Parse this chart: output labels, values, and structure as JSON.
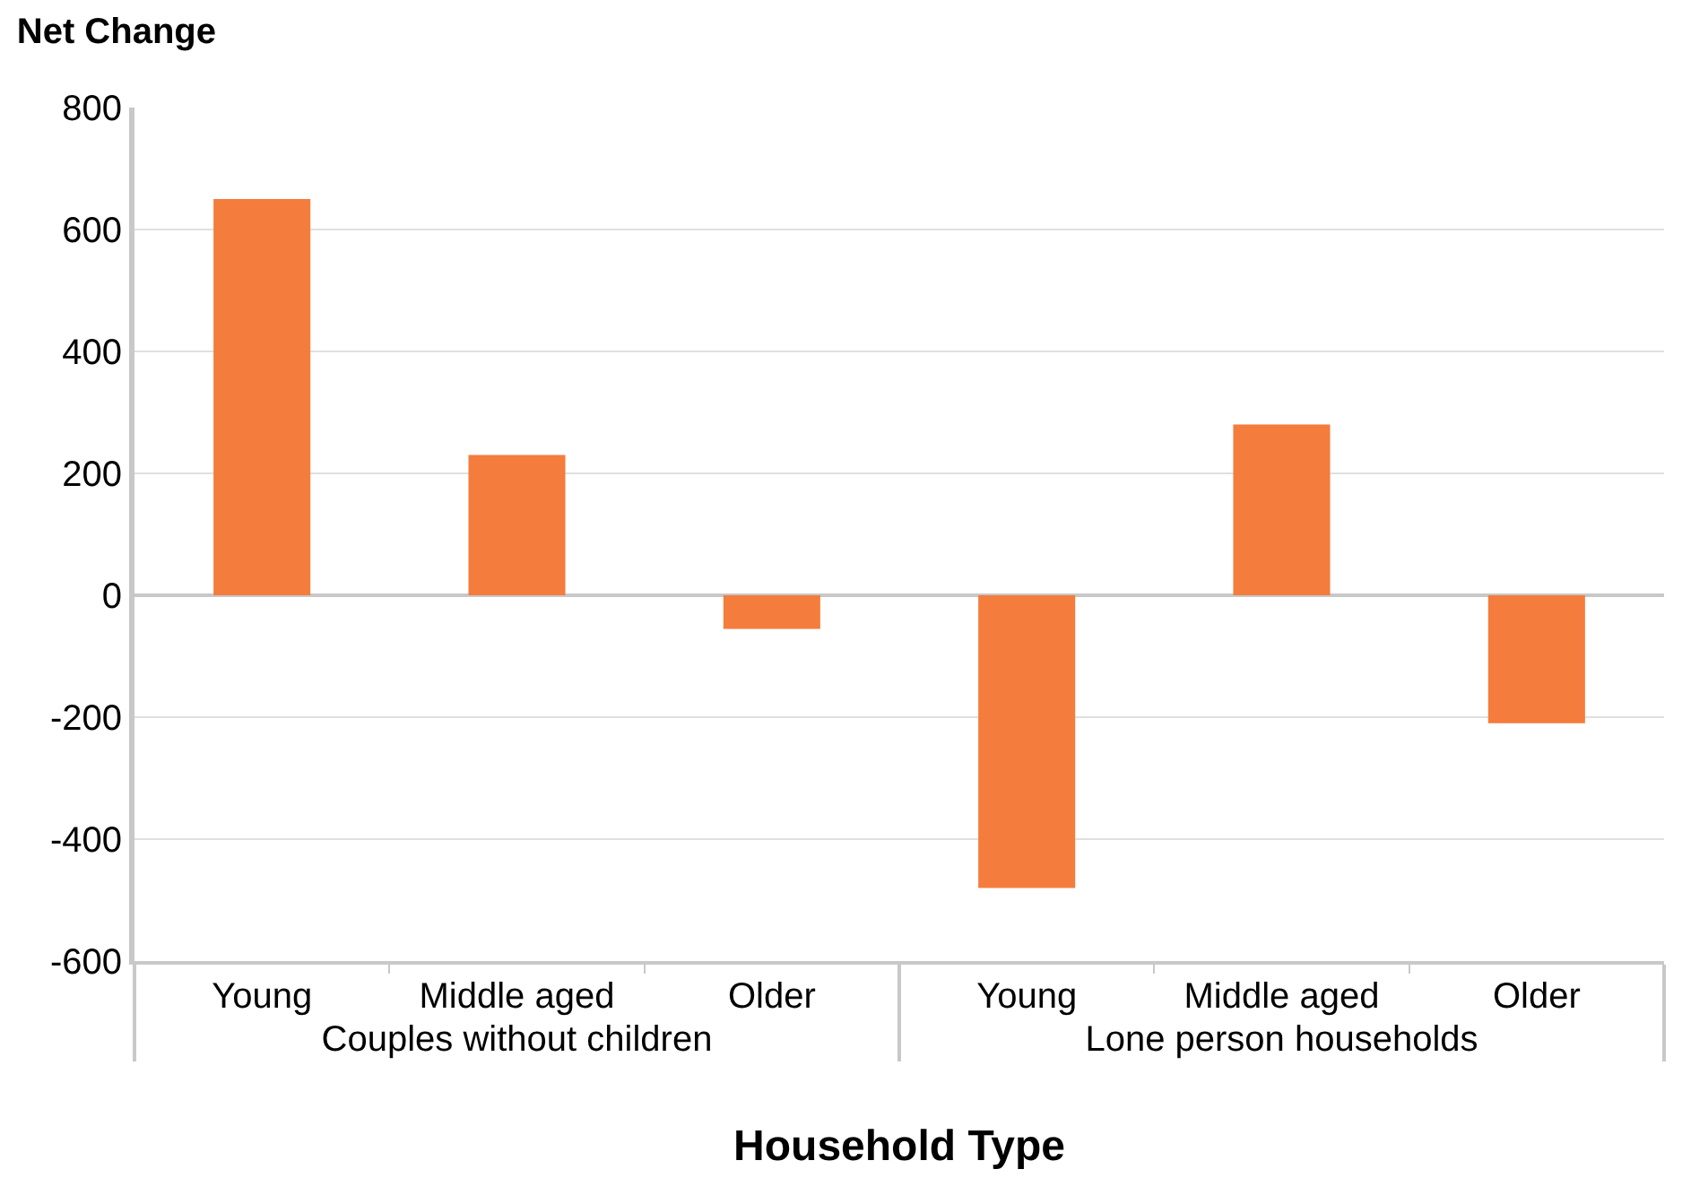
{
  "chart_data": {
    "type": "bar",
    "title": "Net Change",
    "xlabel": "Household Type",
    "categories": [
      "Young",
      "Middle aged",
      "Older",
      "Young",
      "Middle aged",
      "Older"
    ],
    "annotations": [
      "Couples without children",
      "Lone person households"
    ],
    "values": [
      650,
      230,
      -55,
      -480,
      280,
      -210
    ],
    "color": "#f47c3c",
    "ylim": [
      -600,
      800
    ],
    "yticks": [
      -600,
      -400,
      -200,
      0,
      200,
      400,
      600,
      800
    ],
    "grid": "y"
  }
}
